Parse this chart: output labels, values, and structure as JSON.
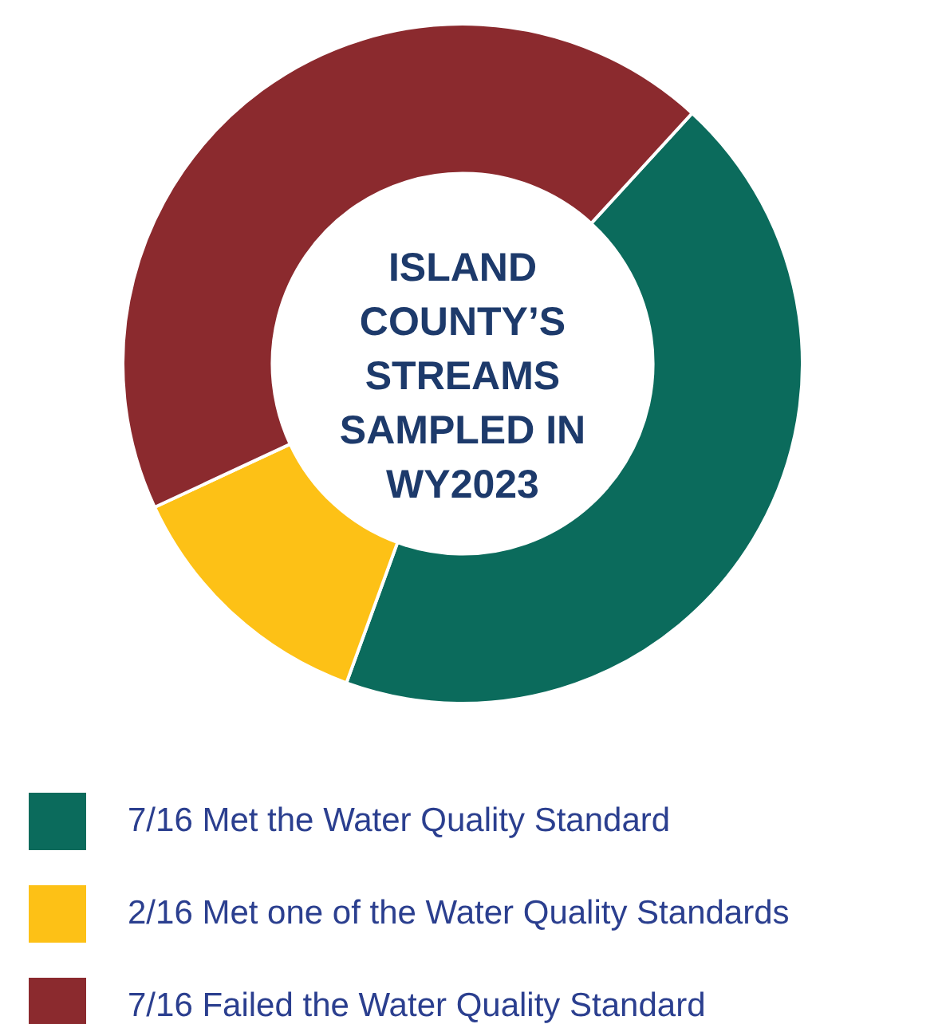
{
  "chart_data": {
    "type": "donut",
    "title": "ISLAND COUNTY’S STREAMS SAMPLED IN WY2023",
    "categories": [
      "7/16 Met the Water Quality Standard",
      "2/16 Met one of the Water Quality Standards",
      "7/16 Failed the Water Quality Standard"
    ],
    "values": [
      7,
      2,
      7
    ],
    "colors": [
      "#0b6b5c",
      "#fdc116",
      "#8b2a2e"
    ],
    "legend": "bottom"
  }
}
